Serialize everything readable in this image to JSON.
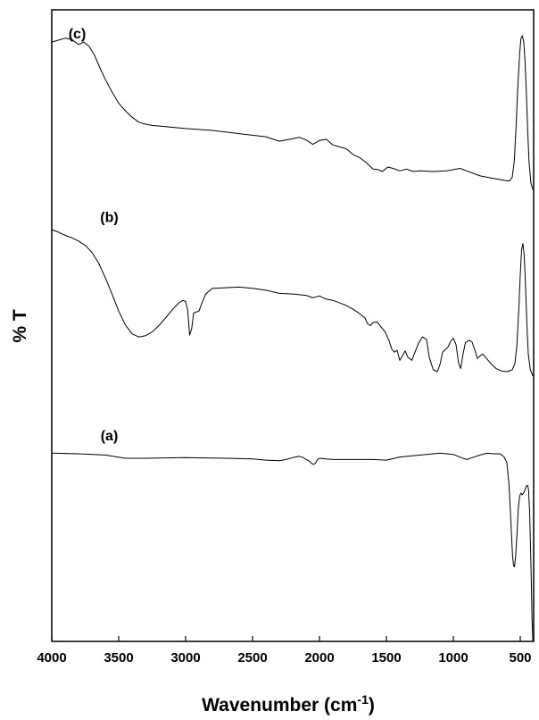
{
  "chart_data": {
    "type": "line",
    "xlabel": "Wavenumber (cm",
    "xlabel_sup": "-1",
    "xlabel_end": ")",
    "ylabel": "% T",
    "xlim": [
      4000,
      400
    ],
    "x_reversed": true,
    "y_ticks": "none",
    "grid": false,
    "xticks": [
      {
        "value": 4000,
        "label": "4000"
      },
      {
        "value": 3500,
        "label": "3500"
      },
      {
        "value": 3000,
        "label": "3000"
      },
      {
        "value": 2500,
        "label": "2500"
      },
      {
        "value": 2000,
        "label": "2000"
      },
      {
        "value": 1500,
        "label": "1500"
      },
      {
        "value": 1000,
        "label": "1000"
      },
      {
        "value": 500,
        "label": "500"
      }
    ],
    "ylim": [
      0,
      100
    ],
    "series": [
      {
        "name": "(c)",
        "label_at": [
          3810,
          95.5
        ],
        "points": [
          [
            4000,
            94.9
          ],
          [
            3950,
            95.2
          ],
          [
            3900,
            95.5
          ],
          [
            3850,
            95.3
          ],
          [
            3800,
            94.5
          ],
          [
            3760,
            94.9
          ],
          [
            3720,
            94.2
          ],
          [
            3680,
            92.8
          ],
          [
            3640,
            90.8
          ],
          [
            3600,
            89.0
          ],
          [
            3550,
            87.0
          ],
          [
            3500,
            85.2
          ],
          [
            3450,
            84.0
          ],
          [
            3400,
            83.0
          ],
          [
            3350,
            82.2
          ],
          [
            3300,
            81.9
          ],
          [
            3250,
            81.7
          ],
          [
            3000,
            81.2
          ],
          [
            2800,
            80.9
          ],
          [
            2600,
            80.4
          ],
          [
            2400,
            79.9
          ],
          [
            2300,
            79.2
          ],
          [
            2200,
            79.6
          ],
          [
            2150,
            79.8
          ],
          [
            2100,
            79.4
          ],
          [
            2050,
            78.7
          ],
          [
            2000,
            79.3
          ],
          [
            1950,
            79.5
          ],
          [
            1900,
            78.6
          ],
          [
            1800,
            78.0
          ],
          [
            1750,
            77.1
          ],
          [
            1700,
            76.6
          ],
          [
            1650,
            75.8
          ],
          [
            1600,
            74.8
          ],
          [
            1560,
            74.7
          ],
          [
            1530,
            74.4
          ],
          [
            1490,
            75.1
          ],
          [
            1450,
            74.9
          ],
          [
            1400,
            74.5
          ],
          [
            1350,
            74.8
          ],
          [
            1300,
            74.4
          ],
          [
            1250,
            74.5
          ],
          [
            1150,
            74.4
          ],
          [
            1050,
            74.5
          ],
          [
            950,
            74.9
          ],
          [
            900,
            74.5
          ],
          [
            800,
            73.7
          ],
          [
            700,
            73.3
          ],
          [
            620,
            73.0
          ],
          [
            580,
            72.9
          ],
          [
            560,
            73.5
          ],
          [
            545,
            76.0
          ],
          [
            530,
            82.0
          ],
          [
            518,
            88.0
          ],
          [
            505,
            93.0
          ],
          [
            495,
            95.5
          ],
          [
            485,
            95.9
          ],
          [
            475,
            95.0
          ],
          [
            465,
            92.0
          ],
          [
            455,
            87.0
          ],
          [
            445,
            81.0
          ],
          [
            435,
            76.0
          ],
          [
            420,
            72.5
          ],
          [
            405,
            71.5
          ]
        ]
      },
      {
        "name": "(b)",
        "label_at": [
          3570,
          66.4
        ],
        "points": [
          [
            4000,
            65.2
          ],
          [
            3950,
            64.8
          ],
          [
            3900,
            64.3
          ],
          [
            3850,
            63.9
          ],
          [
            3800,
            63.4
          ],
          [
            3750,
            62.7
          ],
          [
            3700,
            61.6
          ],
          [
            3650,
            59.9
          ],
          [
            3600,
            57.6
          ],
          [
            3550,
            55.0
          ],
          [
            3500,
            52.3
          ],
          [
            3450,
            50.1
          ],
          [
            3400,
            48.7
          ],
          [
            3350,
            48.2
          ],
          [
            3300,
            48.4
          ],
          [
            3250,
            49.0
          ],
          [
            3200,
            50.0
          ],
          [
            3150,
            51.2
          ],
          [
            3100,
            52.5
          ],
          [
            3050,
            53.6
          ],
          [
            3020,
            54.0
          ],
          [
            3000,
            53.8
          ],
          [
            2985,
            52.5
          ],
          [
            2970,
            48.5
          ],
          [
            2955,
            49.5
          ],
          [
            2940,
            52.0
          ],
          [
            2900,
            52.3
          ],
          [
            2880,
            53.5
          ],
          [
            2850,
            55.0
          ],
          [
            2800,
            55.9
          ],
          [
            2700,
            56.0
          ],
          [
            2600,
            56.1
          ],
          [
            2500,
            55.9
          ],
          [
            2400,
            55.6
          ],
          [
            2300,
            55.1
          ],
          [
            2200,
            55.0
          ],
          [
            2100,
            54.8
          ],
          [
            2050,
            54.4
          ],
          [
            2000,
            54.7
          ],
          [
            1950,
            54.2
          ],
          [
            1900,
            54.0
          ],
          [
            1800,
            53.2
          ],
          [
            1750,
            52.6
          ],
          [
            1700,
            51.9
          ],
          [
            1660,
            51.2
          ],
          [
            1640,
            50.3
          ],
          [
            1620,
            50.0
          ],
          [
            1600,
            50.5
          ],
          [
            1570,
            50.6
          ],
          [
            1540,
            49.8
          ],
          [
            1510,
            49.0
          ],
          [
            1480,
            47.6
          ],
          [
            1460,
            46.3
          ],
          [
            1440,
            45.8
          ],
          [
            1420,
            46.1
          ],
          [
            1400,
            44.5
          ],
          [
            1380,
            45.2
          ],
          [
            1360,
            46.0
          ],
          [
            1340,
            45.0
          ],
          [
            1310,
            44.5
          ],
          [
            1290,
            45.6
          ],
          [
            1260,
            47.2
          ],
          [
            1230,
            48.2
          ],
          [
            1200,
            47.8
          ],
          [
            1180,
            45.0
          ],
          [
            1150,
            43.0
          ],
          [
            1120,
            42.7
          ],
          [
            1100,
            43.8
          ],
          [
            1080,
            45.8
          ],
          [
            1060,
            46.2
          ],
          [
            1040,
            46.6
          ],
          [
            1020,
            47.5
          ],
          [
            1000,
            48.0
          ],
          [
            980,
            47.0
          ],
          [
            960,
            44.0
          ],
          [
            945,
            43.2
          ],
          [
            930,
            45.2
          ],
          [
            910,
            47.3
          ],
          [
            880,
            47.7
          ],
          [
            860,
            47.4
          ],
          [
            840,
            46.2
          ],
          [
            820,
            44.8
          ],
          [
            800,
            45.2
          ],
          [
            780,
            45.5
          ],
          [
            760,
            45.0
          ],
          [
            720,
            44.0
          ],
          [
            680,
            43.2
          ],
          [
            640,
            42.8
          ],
          [
            600,
            42.7
          ],
          [
            560,
            43.0
          ],
          [
            540,
            44.0
          ],
          [
            525,
            47.0
          ],
          [
            510,
            53.0
          ],
          [
            500,
            58.0
          ],
          [
            490,
            62.0
          ],
          [
            480,
            63.0
          ],
          [
            470,
            61.0
          ],
          [
            460,
            56.0
          ],
          [
            450,
            50.0
          ],
          [
            440,
            45.5
          ],
          [
            425,
            43.0
          ],
          [
            405,
            42.0
          ]
        ]
      },
      {
        "name": "(a)",
        "label_at": [
          3570,
          31.8
        ],
        "points": [
          [
            4000,
            29.8
          ],
          [
            3800,
            29.7
          ],
          [
            3600,
            29.5
          ],
          [
            3450,
            29.0
          ],
          [
            3300,
            29.0
          ],
          [
            3000,
            29.1
          ],
          [
            2700,
            29.0
          ],
          [
            2500,
            28.9
          ],
          [
            2400,
            28.7
          ],
          [
            2300,
            28.6
          ],
          [
            2250,
            28.8
          ],
          [
            2200,
            29.1
          ],
          [
            2150,
            29.3
          ],
          [
            2120,
            29.1
          ],
          [
            2100,
            28.8
          ],
          [
            2080,
            28.6
          ],
          [
            2060,
            28.2
          ],
          [
            2045,
            28.0
          ],
          [
            2030,
            28.2
          ],
          [
            2015,
            28.8
          ],
          [
            2000,
            29.0
          ],
          [
            1950,
            28.9
          ],
          [
            1900,
            28.8
          ],
          [
            1800,
            28.8
          ],
          [
            1700,
            28.8
          ],
          [
            1600,
            28.8
          ],
          [
            1500,
            28.7
          ],
          [
            1400,
            29.2
          ],
          [
            1300,
            29.4
          ],
          [
            1200,
            29.6
          ],
          [
            1100,
            29.8
          ],
          [
            1000,
            29.6
          ],
          [
            940,
            29.1
          ],
          [
            900,
            28.8
          ],
          [
            860,
            29.1
          ],
          [
            800,
            29.5
          ],
          [
            750,
            29.8
          ],
          [
            700,
            29.7
          ],
          [
            650,
            29.7
          ],
          [
            620,
            29.2
          ],
          [
            600,
            28.3
          ],
          [
            585,
            25.0
          ],
          [
            575,
            21.0
          ],
          [
            565,
            16.5
          ],
          [
            557,
            13.5
          ],
          [
            550,
            12.0
          ],
          [
            543,
            11.8
          ],
          [
            535,
            13.5
          ],
          [
            525,
            17.0
          ],
          [
            515,
            21.0
          ],
          [
            505,
            23.0
          ],
          [
            495,
            23.5
          ],
          [
            485,
            23.2
          ],
          [
            475,
            23.5
          ],
          [
            465,
            24.0
          ],
          [
            455,
            24.6
          ],
          [
            445,
            24.7
          ],
          [
            438,
            24.0
          ],
          [
            430,
            20.5
          ],
          [
            420,
            12.0
          ],
          [
            412,
            3.5
          ],
          [
            406,
            0.0
          ]
        ]
      }
    ]
  }
}
